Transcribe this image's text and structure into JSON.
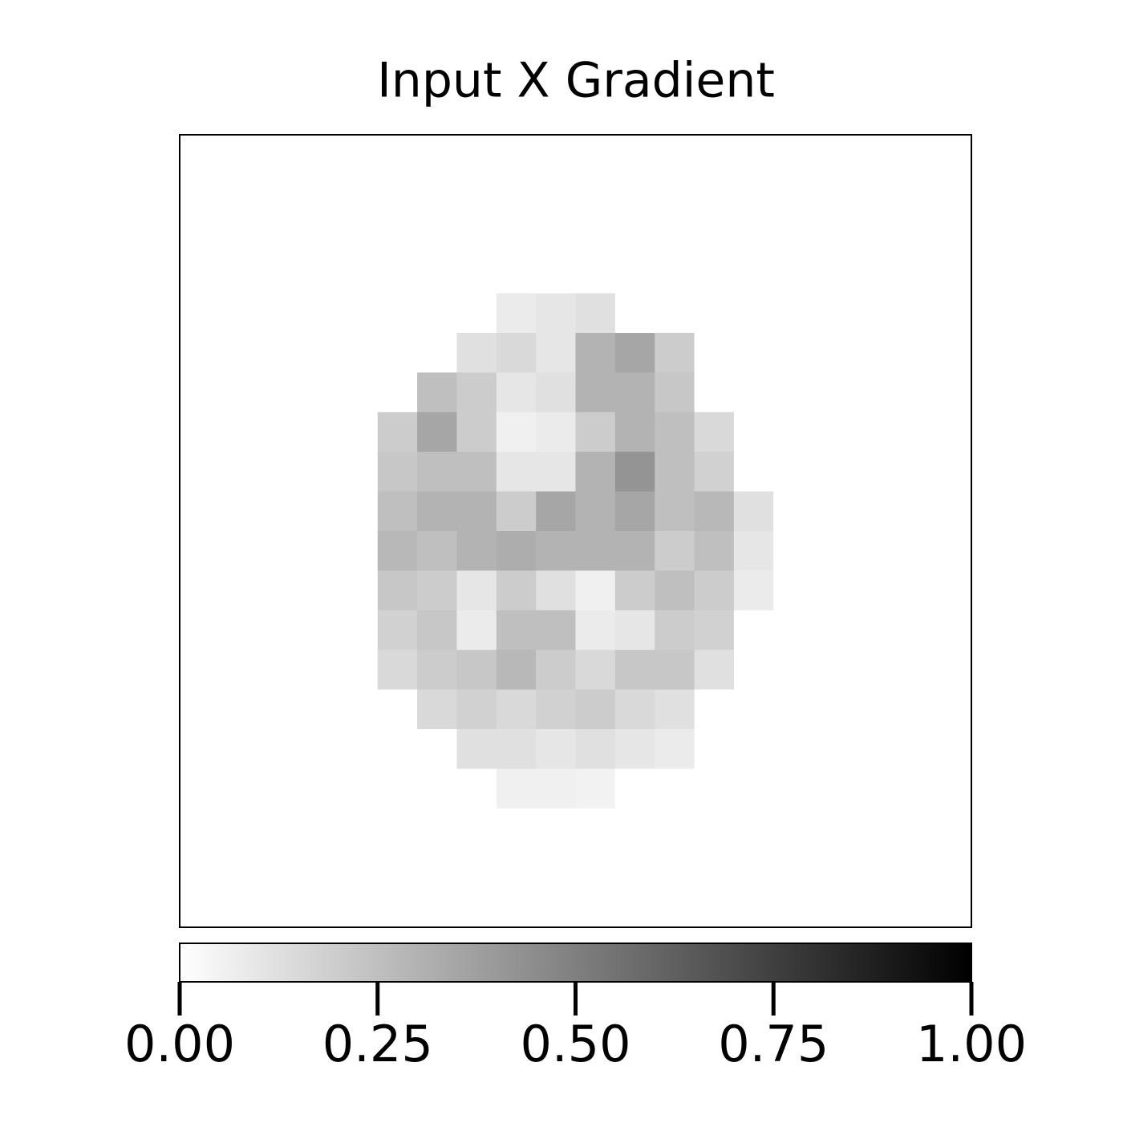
{
  "chart_data": {
    "type": "heatmap",
    "title": "Input X Gradient",
    "colormap": "Greys",
    "clim": [
      0,
      1
    ],
    "colorbar_ticks": [
      {
        "value": 0,
        "label": "0.00"
      },
      {
        "value": 0.25,
        "label": "0.25"
      },
      {
        "value": 0.5,
        "label": "0.50"
      },
      {
        "value": 0.75,
        "label": "0.75"
      },
      {
        "value": 1,
        "label": "1.00"
      }
    ],
    "z": [
      [
        0,
        0,
        0,
        0,
        0,
        0,
        0,
        0,
        0,
        0,
        0,
        0,
        0,
        0,
        0,
        0,
        0,
        0,
        0,
        0
      ],
      [
        0,
        0,
        0,
        0,
        0,
        0,
        0,
        0,
        0,
        0,
        0,
        0,
        0,
        0,
        0,
        0,
        0,
        0,
        0,
        0
      ],
      [
        0,
        0,
        0,
        0,
        0,
        0,
        0,
        0,
        0,
        0,
        0,
        0,
        0,
        0,
        0,
        0,
        0,
        0,
        0,
        0
      ],
      [
        0,
        0,
        0,
        0,
        0,
        0,
        0,
        0,
        0,
        0,
        0,
        0,
        0,
        0,
        0,
        0,
        0,
        0,
        0,
        0
      ],
      [
        0,
        0,
        0,
        0,
        0,
        0,
        0,
        0,
        0.08,
        0.1,
        0.12,
        0,
        0,
        0,
        0,
        0,
        0,
        0,
        0,
        0
      ],
      [
        0,
        0,
        0,
        0,
        0,
        0,
        0,
        0.12,
        0.15,
        0.1,
        0.3,
        0.35,
        0.2,
        0,
        0,
        0,
        0,
        0,
        0,
        0
      ],
      [
        0,
        0,
        0,
        0,
        0,
        0,
        0.25,
        0.2,
        0.1,
        0.12,
        0.3,
        0.3,
        0.22,
        0,
        0,
        0,
        0,
        0,
        0,
        0
      ],
      [
        0,
        0,
        0,
        0,
        0,
        0.2,
        0.35,
        0.2,
        0.06,
        0.08,
        0.2,
        0.3,
        0.25,
        0.15,
        0,
        0,
        0,
        0,
        0,
        0
      ],
      [
        0,
        0,
        0,
        0,
        0,
        0.22,
        0.25,
        0.25,
        0.1,
        0.1,
        0.3,
        0.42,
        0.25,
        0.18,
        0,
        0,
        0,
        0,
        0,
        0
      ],
      [
        0,
        0,
        0,
        0,
        0,
        0.25,
        0.3,
        0.3,
        0.2,
        0.35,
        0.3,
        0.35,
        0.25,
        0.28,
        0.12,
        0,
        0,
        0,
        0,
        0
      ],
      [
        0,
        0,
        0,
        0,
        0,
        0.28,
        0.25,
        0.3,
        0.32,
        0.3,
        0.3,
        0.3,
        0.2,
        0.25,
        0.1,
        0,
        0,
        0,
        0,
        0
      ],
      [
        0,
        0,
        0,
        0,
        0,
        0.22,
        0.2,
        0.1,
        0.2,
        0.12,
        0.06,
        0.2,
        0.25,
        0.2,
        0.08,
        0,
        0,
        0,
        0,
        0
      ],
      [
        0,
        0,
        0,
        0,
        0,
        0.18,
        0.22,
        0.08,
        0.25,
        0.25,
        0.08,
        0.1,
        0.2,
        0.18,
        0,
        0,
        0,
        0,
        0,
        0
      ],
      [
        0,
        0,
        0,
        0,
        0,
        0.15,
        0.2,
        0.22,
        0.28,
        0.2,
        0.15,
        0.22,
        0.22,
        0.12,
        0,
        0,
        0,
        0,
        0,
        0
      ],
      [
        0,
        0,
        0,
        0,
        0,
        0,
        0.15,
        0.18,
        0.15,
        0.18,
        0.2,
        0.15,
        0.12,
        0,
        0,
        0,
        0,
        0,
        0,
        0
      ],
      [
        0,
        0,
        0,
        0,
        0,
        0,
        0,
        0.12,
        0.12,
        0.1,
        0.12,
        0.1,
        0.08,
        0,
        0,
        0,
        0,
        0,
        0,
        0
      ],
      [
        0,
        0,
        0,
        0,
        0,
        0,
        0,
        0,
        0.06,
        0.06,
        0.05,
        0,
        0,
        0,
        0,
        0,
        0,
        0,
        0,
        0
      ],
      [
        0,
        0,
        0,
        0,
        0,
        0,
        0,
        0,
        0,
        0,
        0,
        0,
        0,
        0,
        0,
        0,
        0,
        0,
        0,
        0
      ],
      [
        0,
        0,
        0,
        0,
        0,
        0,
        0,
        0,
        0,
        0,
        0,
        0,
        0,
        0,
        0,
        0,
        0,
        0,
        0,
        0
      ],
      [
        0,
        0,
        0,
        0,
        0,
        0,
        0,
        0,
        0,
        0,
        0,
        0,
        0,
        0,
        0,
        0,
        0,
        0,
        0,
        0
      ]
    ]
  }
}
